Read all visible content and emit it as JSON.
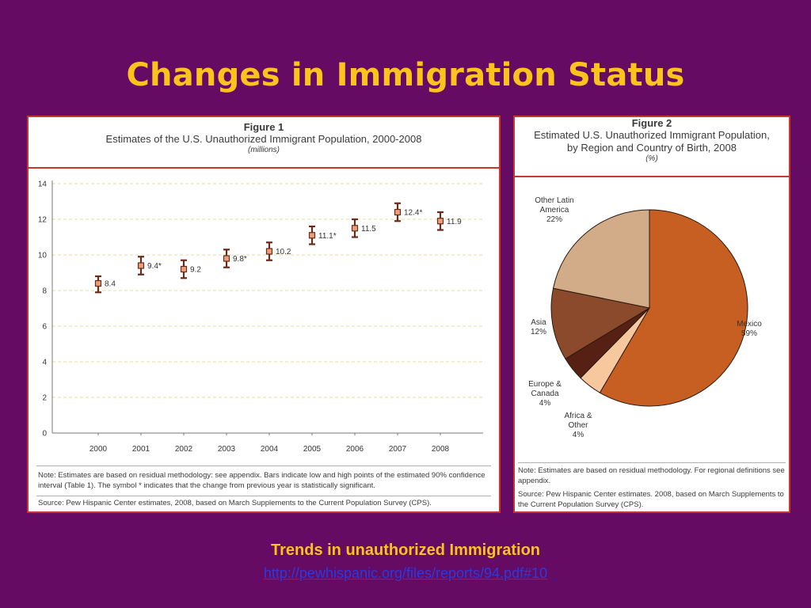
{
  "slide": {
    "title": "Changes in Immigration Status",
    "caption": "Trends in unauthorized Immigration",
    "link": "http://pewhispanic.org/files/reports/94.pdf#10"
  },
  "figure1": {
    "number": "Figure 1",
    "title": "Estimates of the U.S. Unauthorized Immigrant Population, 2000-2008",
    "units": "(millions)",
    "note": "Note: Estimates are based on residual methodology: see appendix. Bars indicate low and high points of the estimated 90% confidence interval (Table 1). The symbol * indicates that the change from previous year is statistically significant.",
    "source": "Source: Pew Hispanic Center estimates, 2008, based on March Supplements to the Current Population Survey (CPS)."
  },
  "figure2": {
    "number": "Figure 2",
    "title_line1": "Estimated U.S. Unauthorized Immigrant Population,",
    "title_line2": "by Region and Country of Birth, 2008",
    "units": "(%)",
    "note": "Note: Estimates are based on residual methodology. For regional definitions see appendix.",
    "source": "Source: Pew Hispanic Center estimates. 2008, based on March Supplements to the Current Population Survey (CPS)."
  },
  "colors": {
    "background": "#650b63",
    "title": "#fbc31c",
    "border": "#c8372a",
    "marker": "#e8a07a",
    "errorbar": "#6b2a1a"
  },
  "chart_data": [
    {
      "type": "scatter",
      "x": [
        "2000",
        "2001",
        "2002",
        "2003",
        "2004",
        "2005",
        "2006",
        "2007",
        "2008"
      ],
      "y": [
        8.4,
        9.4,
        9.2,
        9.8,
        10.2,
        11.1,
        11.5,
        12.4,
        11.9
      ],
      "labels": [
        "8.4",
        "9.4*",
        "9.2",
        "9.8*",
        "10.2",
        "11.1*",
        "11.5",
        "12.4*",
        "11.9"
      ],
      "error_low": [
        7.9,
        8.9,
        8.7,
        9.3,
        9.7,
        10.6,
        11.0,
        11.9,
        11.4
      ],
      "error_high": [
        8.8,
        9.9,
        9.7,
        10.3,
        10.7,
        11.6,
        12.0,
        12.9,
        12.4
      ],
      "yticks": [
        "0",
        "2",
        "4",
        "6",
        "8",
        "10",
        "12",
        "14"
      ],
      "ylim": [
        0,
        14
      ],
      "grid": true,
      "legend": "none"
    },
    {
      "type": "pie",
      "slices": [
        {
          "label": "Mexico",
          "pct_label": "59%",
          "value": 59,
          "color": "#c85f22"
        },
        {
          "label": "Africa & Other",
          "pct_label": "4%",
          "value": 4,
          "color": "#f7c79e"
        },
        {
          "label": "Europe & Canada",
          "pct_label": "4%",
          "value": 4,
          "color": "#562015"
        },
        {
          "label": "Asia",
          "pct_label": "12%",
          "value": 12,
          "color": "#8c4a2c"
        },
        {
          "label": "Other Latin America",
          "pct_label": "22%",
          "value": 22,
          "color": "#d2ab88"
        }
      ],
      "start_angle_deg": 0,
      "direction": "clockwise"
    }
  ]
}
